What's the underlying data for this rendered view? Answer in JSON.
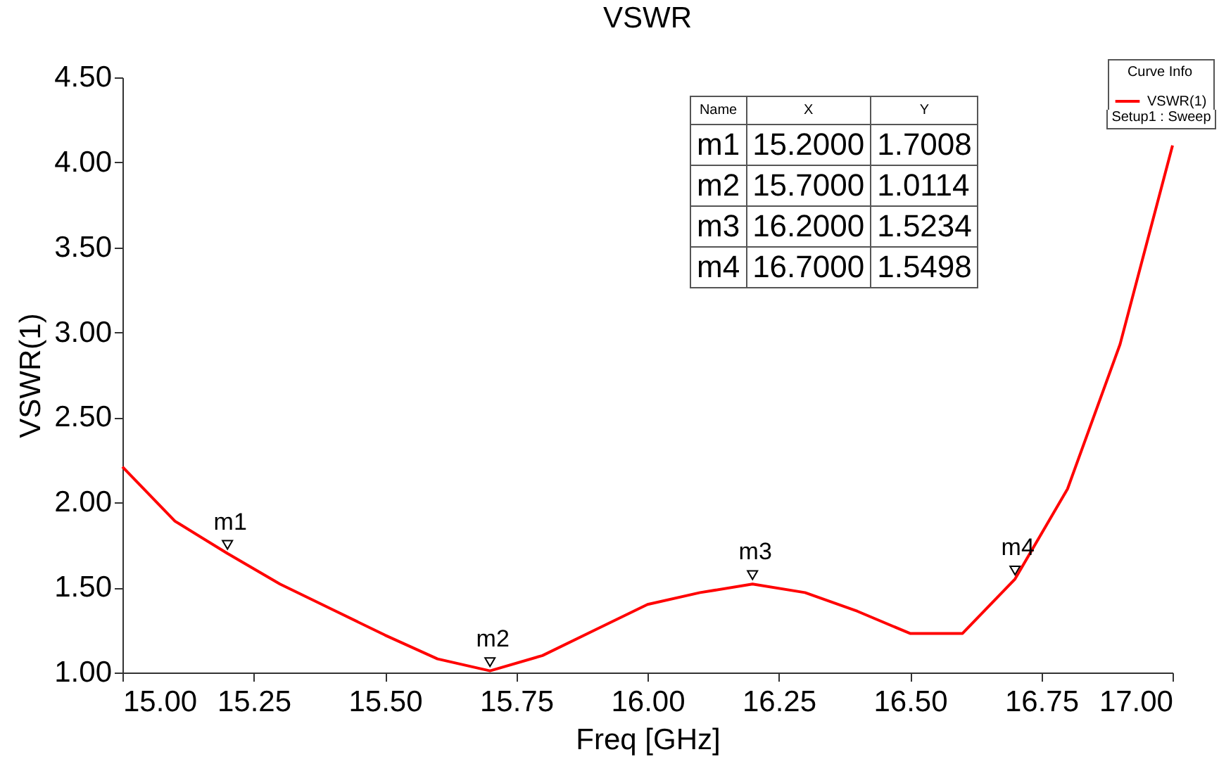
{
  "chart_data": {
    "type": "line",
    "title": "VSWR",
    "xlabel": "Freq [GHz]",
    "ylabel": "VSWR(1)",
    "legend_title": "Curve Info",
    "legend": "top right",
    "grid": false,
    "marker": "none",
    "x": [
      15.0,
      15.1,
      15.2,
      15.3,
      15.4,
      15.5,
      15.6,
      15.7,
      15.8,
      15.9,
      16.0,
      16.1,
      16.2,
      16.3,
      16.4,
      16.5,
      16.6,
      16.7,
      16.8,
      16.9,
      17.0
    ],
    "series": [
      {
        "name": "VSWR(1)",
        "color": "#ff0000",
        "values": [
          2.21,
          1.89,
          1.7,
          1.52,
          1.37,
          1.22,
          1.08,
          1.01,
          1.1,
          1.25,
          1.4,
          1.47,
          1.52,
          1.47,
          1.36,
          1.23,
          1.23,
          1.55,
          2.08,
          2.93,
          4.1
        ]
      }
    ],
    "xlim": [
      15.0,
      17.0
    ],
    "xticks": [
      {
        "value": 15.0,
        "label": "15.00"
      },
      {
        "value": 15.25,
        "label": "15.25"
      },
      {
        "value": 15.5,
        "label": "15.50"
      },
      {
        "value": 15.75,
        "label": "15.75"
      },
      {
        "value": 16.0,
        "label": "16.00"
      },
      {
        "value": 16.25,
        "label": "16.25"
      },
      {
        "value": 16.5,
        "label": "16.50"
      },
      {
        "value": 16.75,
        "label": "16.75"
      },
      {
        "value": 17.0,
        "label": "17.00"
      }
    ],
    "ylim": [
      1.0,
      4.5
    ],
    "yticks": [
      {
        "value": 1.0,
        "label": "1.00"
      },
      {
        "value": 1.5,
        "label": "1.50"
      },
      {
        "value": 2.0,
        "label": "2.00"
      },
      {
        "value": 2.5,
        "label": "2.50"
      },
      {
        "value": 3.0,
        "label": "3.00"
      },
      {
        "value": 3.5,
        "label": "3.50"
      },
      {
        "value": 4.0,
        "label": "4.00"
      },
      {
        "value": 4.5,
        "label": "4.50"
      }
    ],
    "annotations": [
      {
        "text": "m1",
        "x": 15.2,
        "y": 1.7008
      },
      {
        "text": "m2",
        "x": 15.7,
        "y": 1.0114
      },
      {
        "text": "m3",
        "x": 16.2,
        "y": 1.5234
      },
      {
        "text": "m4",
        "x": 16.7,
        "y": 1.5498
      },
      "Name",
      "X",
      "Y",
      "m1",
      "15.2000",
      "1.7008",
      "m2",
      "15.7000",
      "1.0114",
      "m3",
      "16.2000",
      "1.5234",
      "m4",
      "16.7000",
      "1.5498",
      "Setup1 : Sweep"
    ]
  }
}
